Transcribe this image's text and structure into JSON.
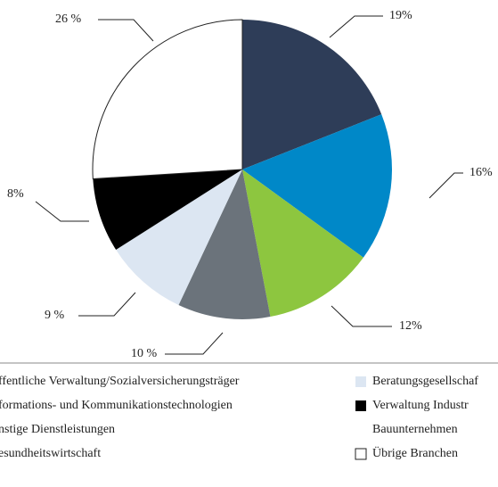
{
  "chart_data": {
    "type": "pie",
    "categories": [
      "ffentliche Verwaltung/Sozialversicherungsträger",
      "formations- und Kommunikationstechnologien",
      "nstige Dienstleistungen",
      "esundheitswirtschaft",
      "Beratungsgesellschaf",
      "Verwaltung Industr\nBauunternehmen",
      "Übrige Branchen"
    ],
    "values": [
      19,
      16,
      12,
      10,
      9,
      8,
      26
    ],
    "value_labels": [
      "19%",
      "16%",
      "12%",
      "10 %",
      "9 %",
      "8%",
      "26 %"
    ],
    "colors": [
      "#2e3d58",
      "#0088c8",
      "#8dc63f",
      "#6b737b",
      "#dce6f2",
      "#000000",
      "#ffffff"
    ]
  }
}
